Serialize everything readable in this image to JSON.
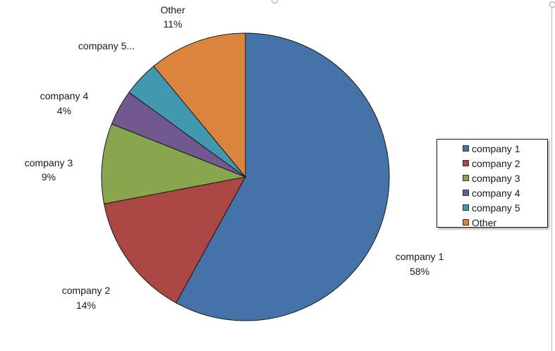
{
  "chart_data": {
    "type": "pie",
    "title": "",
    "categories": [
      "company 1",
      "company 2",
      "company 3",
      "company 4",
      "company 5",
      "Other"
    ],
    "values": [
      58,
      14,
      9,
      4,
      4,
      11
    ],
    "slice_labels": [
      {
        "name": "company 1",
        "pct": "58%"
      },
      {
        "name": "company 2",
        "pct": "14%"
      },
      {
        "name": "company 3",
        "pct": "9%"
      },
      {
        "name": "company 4",
        "pct": "4%"
      },
      {
        "name": "company 5...",
        "pct": ""
      },
      {
        "name": "Other",
        "pct": "11%"
      }
    ],
    "colors": [
      "#4572a7",
      "#aa4643",
      "#89a54e",
      "#71588f",
      "#4198af",
      "#db843d"
    ],
    "legend": {
      "position": "right",
      "entries": [
        "company 1",
        "company 2",
        "company 3",
        "company 4",
        "company 5",
        "Other"
      ]
    },
    "start_angle": "12 o'clock",
    "direction": "clockwise"
  }
}
